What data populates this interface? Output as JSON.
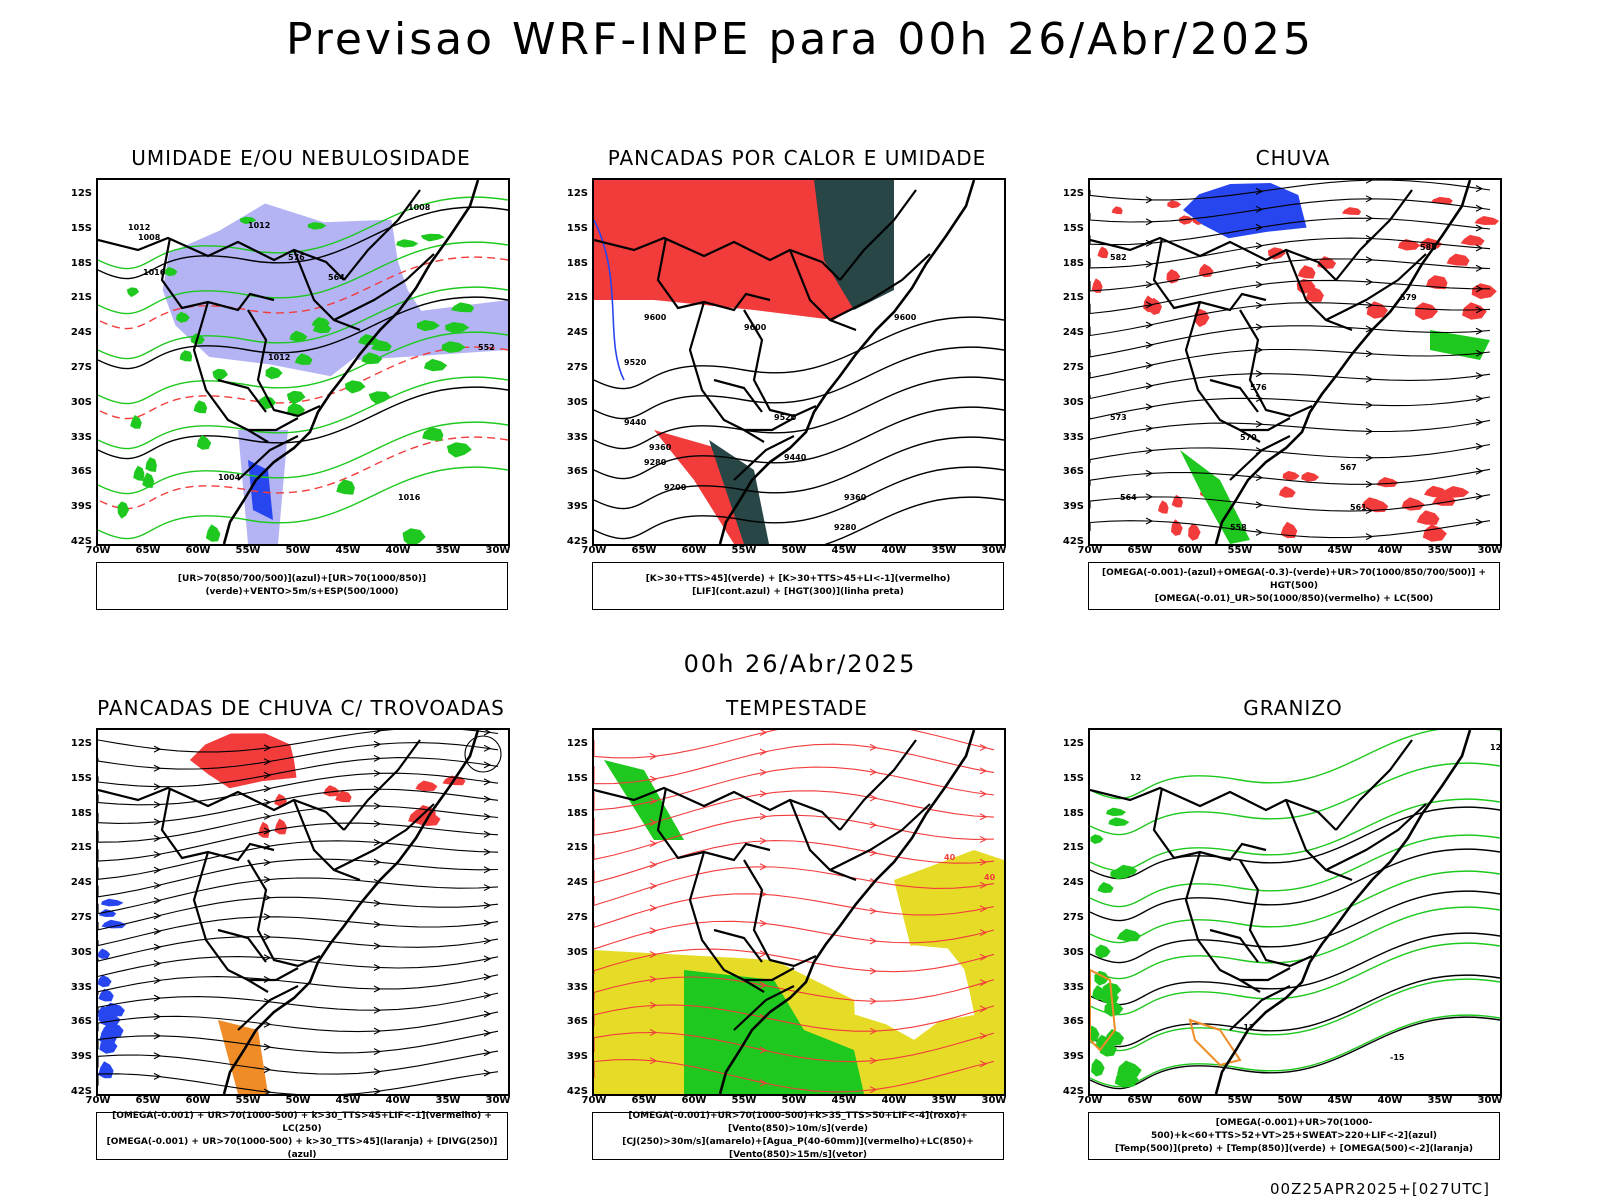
{
  "main_title": "Previsao WRF-INPE  para 00h 26/Abr/2025",
  "mid_title": "00h 26/Abr/2025",
  "footer": "00Z25APR2025+[027UTC]",
  "lat_labels": [
    "12S",
    "15S",
    "18S",
    "21S",
    "24S",
    "27S",
    "30S",
    "33S",
    "36S",
    "39S",
    "42S"
  ],
  "lon_labels": [
    "70W",
    "65W",
    "60W",
    "55W",
    "50W",
    "45W",
    "40W",
    "35W",
    "30W"
  ],
  "colors": {
    "red": "#f23c3c",
    "green": "#1ec81e",
    "blue": "#2846f0",
    "lavender": "#b4b4f5",
    "yellow": "#e6dc28",
    "orange": "#f08c28",
    "darkgreen": "#284646"
  },
  "panels": [
    {
      "title": "UMIDADE E/OU NEBULOSIDADE",
      "legend": [
        "[UR>70(850/700/500)](azul)+[UR>70(1000/850)](verde)+VENTO>5m/s+ESP(500/1000)"
      ],
      "contour_labels": [
        "1012",
        "1008",
        "1012",
        "1016",
        "1008",
        "576",
        "564",
        "552",
        "1012",
        "1004",
        "1016"
      ]
    },
    {
      "title": "PANCADAS POR CALOR E UMIDADE",
      "legend": [
        "[K>30+TTS>45](verde) + [K>30+TTS>45+LI<-1](vermelho)",
        "[LIF](cont.azul) + [HGT(300)](linha preta)"
      ],
      "contour_labels": [
        "9600",
        "9600",
        "9600",
        "9520",
        "9520",
        "9440",
        "9440",
        "9360",
        "9360",
        "9280",
        "9280",
        "9200"
      ]
    },
    {
      "title": "CHUVA",
      "legend": [
        "[OMEGA(-0.001)-(azul)+OMEGA(-0.3)-(verde)+UR>70(1000/850/700/500)] + HGT(500)",
        "[OMEGA(-0.01)_UR>50(1000/850)(vermelho) + LC(500)"
      ],
      "contour_labels": [
        "585",
        "582",
        "579",
        "576",
        "573",
        "570",
        "567",
        "564",
        "561",
        "558"
      ]
    },
    {
      "title": "PANCADAS DE CHUVA C/ TROVOADAS",
      "legend": [
        "[OMEGA(-0.001) + UR>70(1000-500) + k>30_TTS>45+LIF<-1](vermelho) + LC(250)",
        "[OMEGA(-0.001) + UR>70(1000-500) + k>30_TTS>45](laranja) + [DIVG(250)](azul)"
      ],
      "contour_labels": []
    },
    {
      "title": "TEMPESTADE",
      "legend": [
        "[OMEGA(-0.001)+UR>70(1000-500)+k>35_TTS>50+LIF<-4](roxo)+[Vento(850)>10m/s](verde)",
        "[CJ(250)>30m/s](amarelo)+[Agua_P(40-60mm)](vermelho)+LC(850)+[Vento(850)>15m/s](vetor)"
      ],
      "contour_labels": [
        "40",
        "40"
      ]
    },
    {
      "title": "GRANIZO",
      "legend": [
        "[OMEGA(-0.001)+UR>70(1000-500)+k<60+TTS>52+VT>25+SWEAT>220+LIF<-2](azul)",
        "[Temp(500)](preto) + [Temp(850)](verde) + [OMEGA(500)<-2](laranja)"
      ],
      "contour_labels": [
        "-12",
        "-15",
        "12",
        "12"
      ]
    }
  ]
}
